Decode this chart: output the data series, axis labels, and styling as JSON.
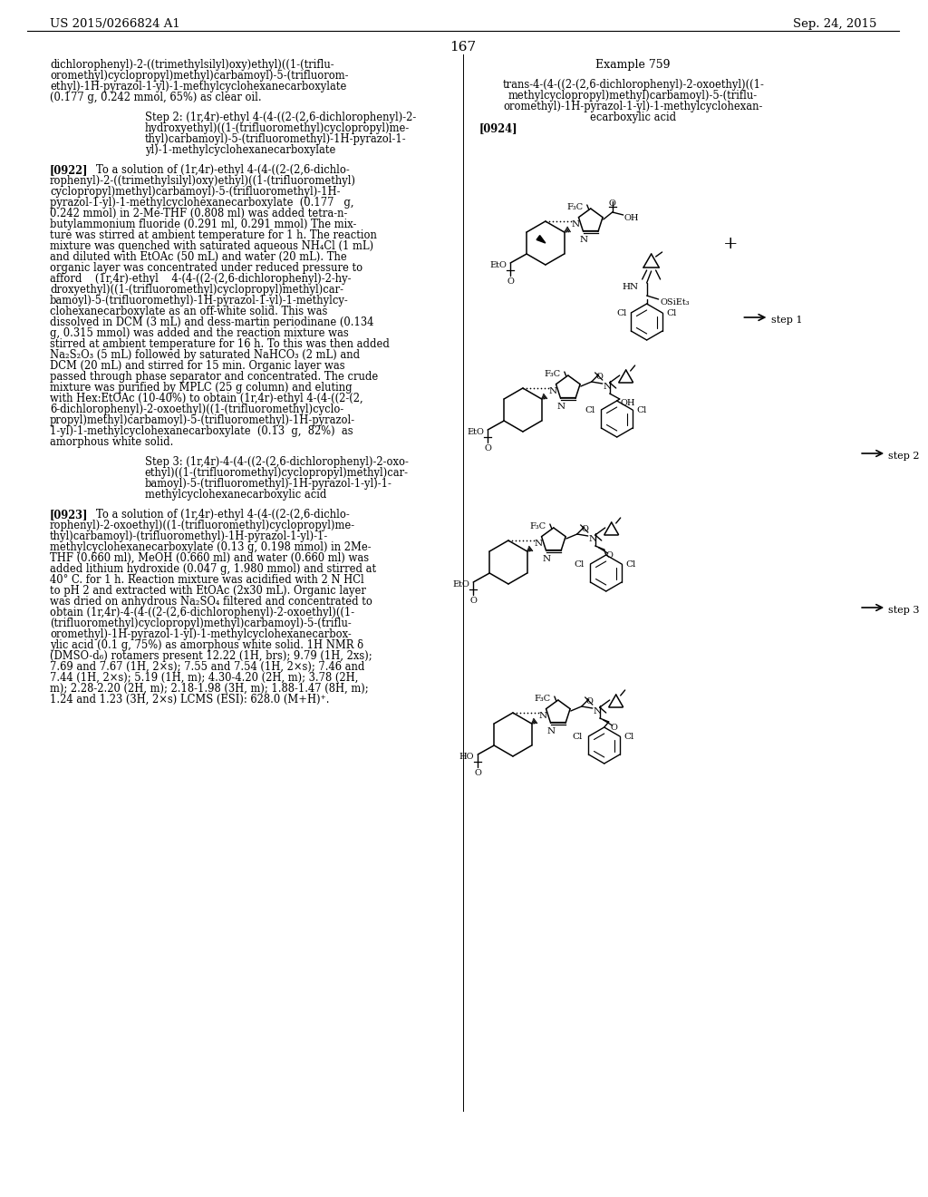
{
  "patent_left": "US 2015/0266824 A1",
  "patent_right": "Sep. 24, 2015",
  "page_number": "167",
  "bg_color": "#ffffff",
  "text_color": "#000000",
  "left_texts": [
    [
      55,
      1255,
      "dichlorophenyl)-2-((trimethylsilyl)oxy)ethyl)((1-(triflu-",
      false,
      0
    ],
    [
      55,
      1243,
      "oromethyl)cyclopropyl)methyl)carbamoyl)-5-(trifluorom-",
      false,
      0
    ],
    [
      55,
      1231,
      "ethyl)-1H-pyrazol-1-yl)-1-methylcyclohexanecarboxylate",
      false,
      0
    ],
    [
      55,
      1219,
      "(0.177 g, 0.242 mmol, 65%) as clear oil.",
      false,
      0
    ],
    [
      160,
      1197,
      "Step 2: (1r,4r)-ethyl 4-(4-((2-(2,6-dichlorophenyl)-2-",
      false,
      0
    ],
    [
      160,
      1185,
      "hydroxyethyl)((1-(trifluoromethyl)cyclopropyl)me-",
      false,
      0
    ],
    [
      160,
      1173,
      "thyl)carbamoyl)-5-(trifluoromethyl)-1H-pyrazol-1-",
      false,
      0
    ],
    [
      160,
      1161,
      "yl)-1-methylcyclohexanecarboxylate",
      false,
      0
    ],
    [
      55,
      1139,
      "[0922]",
      true,
      0
    ],
    [
      106,
      1139,
      "To a solution of (1r,4r)-ethyl 4-(4-((2-(2,6-dichlo-",
      false,
      0
    ],
    [
      55,
      1127,
      "rophenyl)-2-((trimethylsilyl)oxy)ethyl)((1-(trifluoromethyl)",
      false,
      0
    ],
    [
      55,
      1115,
      "cyclopropyl)methyl)carbamoyl)-5-(trifluoromethyl)-1H-",
      false,
      0
    ],
    [
      55,
      1103,
      "pyrazol-1-yl)-1-methylcyclohexanecarboxylate  (0.177   g,",
      false,
      0
    ],
    [
      55,
      1091,
      "0.242 mmol) in 2-Me-THF (0.808 ml) was added tetra-n-",
      false,
      0
    ],
    [
      55,
      1079,
      "butylammonium fluoride (0.291 ml, 0.291 mmol) The mix-",
      false,
      0
    ],
    [
      55,
      1067,
      "ture was stirred at ambient temperature for 1 h. The reaction",
      false,
      0
    ],
    [
      55,
      1055,
      "mixture was quenched with saturated aqueous NH₄Cl (1 mL)",
      false,
      0
    ],
    [
      55,
      1043,
      "and diluted with EtOAc (50 mL) and water (20 mL). The",
      false,
      0
    ],
    [
      55,
      1031,
      "organic layer was concentrated under reduced pressure to",
      false,
      0
    ],
    [
      55,
      1019,
      "afford    (1r,4r)-ethyl    4-(4-((2-(2,6-dichlorophenyl)-2-hy-",
      false,
      0
    ],
    [
      55,
      1007,
      "droxyethyl)((1-(trifluoromethyl)cyclopropyl)methyl)car-",
      false,
      0
    ],
    [
      55,
      995,
      "bamoyl)-5-(trifluoromethyl)-1H-pyrazol-1-yl)-1-methylcy-",
      false,
      0
    ],
    [
      55,
      983,
      "clohexanecarboxylate as an off-white solid. This was",
      false,
      0
    ],
    [
      55,
      971,
      "dissolved in DCM (3 mL) and dess-martin periodinane (0.134",
      false,
      0
    ],
    [
      55,
      959,
      "g, 0.315 mmol) was added and the reaction mixture was",
      false,
      0
    ],
    [
      55,
      947,
      "stirred at ambient temperature for 16 h. To this was then added",
      false,
      0
    ],
    [
      55,
      935,
      "Na₂S₂O₃ (5 mL) followed by saturated NaHCO₃ (2 mL) and",
      false,
      0
    ],
    [
      55,
      923,
      "DCM (20 mL) and stirred for 15 min. Organic layer was",
      false,
      0
    ],
    [
      55,
      911,
      "passed through phase separator and concentrated. The crude",
      false,
      0
    ],
    [
      55,
      899,
      "mixture was purified by MPLC (25 g column) and eluting",
      false,
      0
    ],
    [
      55,
      887,
      "with Hex:EtOAc (10-40%) to obtain (1r,4r)-ethyl 4-(4-((2-(2,",
      false,
      0
    ],
    [
      55,
      875,
      "6-dichlorophenyl)-2-oxoethyl)((1-(trifluoromethyl)cyclo-",
      false,
      0
    ],
    [
      55,
      863,
      "propyl)methyl)carbamoyl)-5-(trifluoromethyl)-1H-pyrazol-",
      false,
      0
    ],
    [
      55,
      851,
      "1-yl)-1-methylcyclohexanecarboxylate  (0.13  g,  82%)  as",
      false,
      0
    ],
    [
      55,
      839,
      "amorphous white solid.",
      false,
      0
    ],
    [
      160,
      817,
      "Step 3: (1r,4r)-4-(4-((2-(2,6-dichlorophenyl)-2-oxo-",
      false,
      0
    ],
    [
      160,
      805,
      "ethyl)((1-(trifluoromethyl)cyclopropyl)methyl)car-",
      false,
      0
    ],
    [
      160,
      793,
      "bamoyl)-5-(trifluoromethyl)-1H-pyrazol-1-yl)-1-",
      false,
      0
    ],
    [
      160,
      781,
      "methylcyclohexanecarboxylic acid",
      false,
      0
    ],
    [
      55,
      759,
      "[0923]",
      true,
      0
    ],
    [
      106,
      759,
      "To a solution of (1r,4r)-ethyl 4-(4-((2-(2,6-dichlo-",
      false,
      0
    ],
    [
      55,
      747,
      "rophenyl)-2-oxoethyl)((1-(trifluoromethyl)cyclopropyl)me-",
      false,
      0
    ],
    [
      55,
      735,
      "thyl)carbamoyl)-(trifluoromethyl)-1H-pyrazol-1-yl)-1-",
      false,
      0
    ],
    [
      55,
      723,
      "methylcyclohexanecarboxylate (0.13 g, 0.198 mmol) in 2Me-",
      false,
      0
    ],
    [
      55,
      711,
      "THF (0.660 ml), MeOH (0.660 ml) and water (0.660 ml) was",
      false,
      0
    ],
    [
      55,
      699,
      "added lithium hydroxide (0.047 g, 1.980 mmol) and stirred at",
      false,
      0
    ],
    [
      55,
      687,
      "40° C. for 1 h. Reaction mixture was acidified with 2 N HCl",
      false,
      0
    ],
    [
      55,
      675,
      "to pH 2 and extracted with EtOAc (2x30 mL). Organic layer",
      false,
      0
    ],
    [
      55,
      663,
      "was dried on anhydrous Na₂SO₄ filtered and concentrated to",
      false,
      0
    ],
    [
      55,
      651,
      "obtain (1r,4r)-4-(4-((2-(2,6-dichlorophenyl)-2-oxoethyl)((1-",
      false,
      0
    ],
    [
      55,
      639,
      "(trifluoromethyl)cyclopropyl)methyl)carbamoyl)-5-(triflu-",
      false,
      0
    ],
    [
      55,
      627,
      "oromethyl)-1H-pyrazol-1-yl)-1-methylcyclohexanecarbox-",
      false,
      0
    ],
    [
      55,
      615,
      "ylic acid (0.1 g, 75%) as amorphous white solid. 1H NMR δ",
      false,
      0
    ],
    [
      55,
      603,
      "(DMSO-d₆) rotamers present 12.22 (1H, brs); 9.79 (1H, 2xs);",
      false,
      0
    ],
    [
      55,
      591,
      "7.69 and 7.67 (1H, 2×s); 7.55 and 7.54 (1H, 2×s); 7.46 and",
      false,
      0
    ],
    [
      55,
      579,
      "7.44 (1H, 2×s); 5.19 (1H, m); 4.30-4.20 (2H, m); 3.78 (2H,",
      false,
      0
    ],
    [
      55,
      567,
      "m); 2.28-2.20 (2H, m); 2.18-1.98 (3H, m); 1.88-1.47 (8H, m);",
      false,
      0
    ],
    [
      55,
      555,
      "1.24 and 1.23 (3H, 2×s) LCMS (ESI): 628.0 (M+H)⁺.",
      false,
      0
    ]
  ]
}
